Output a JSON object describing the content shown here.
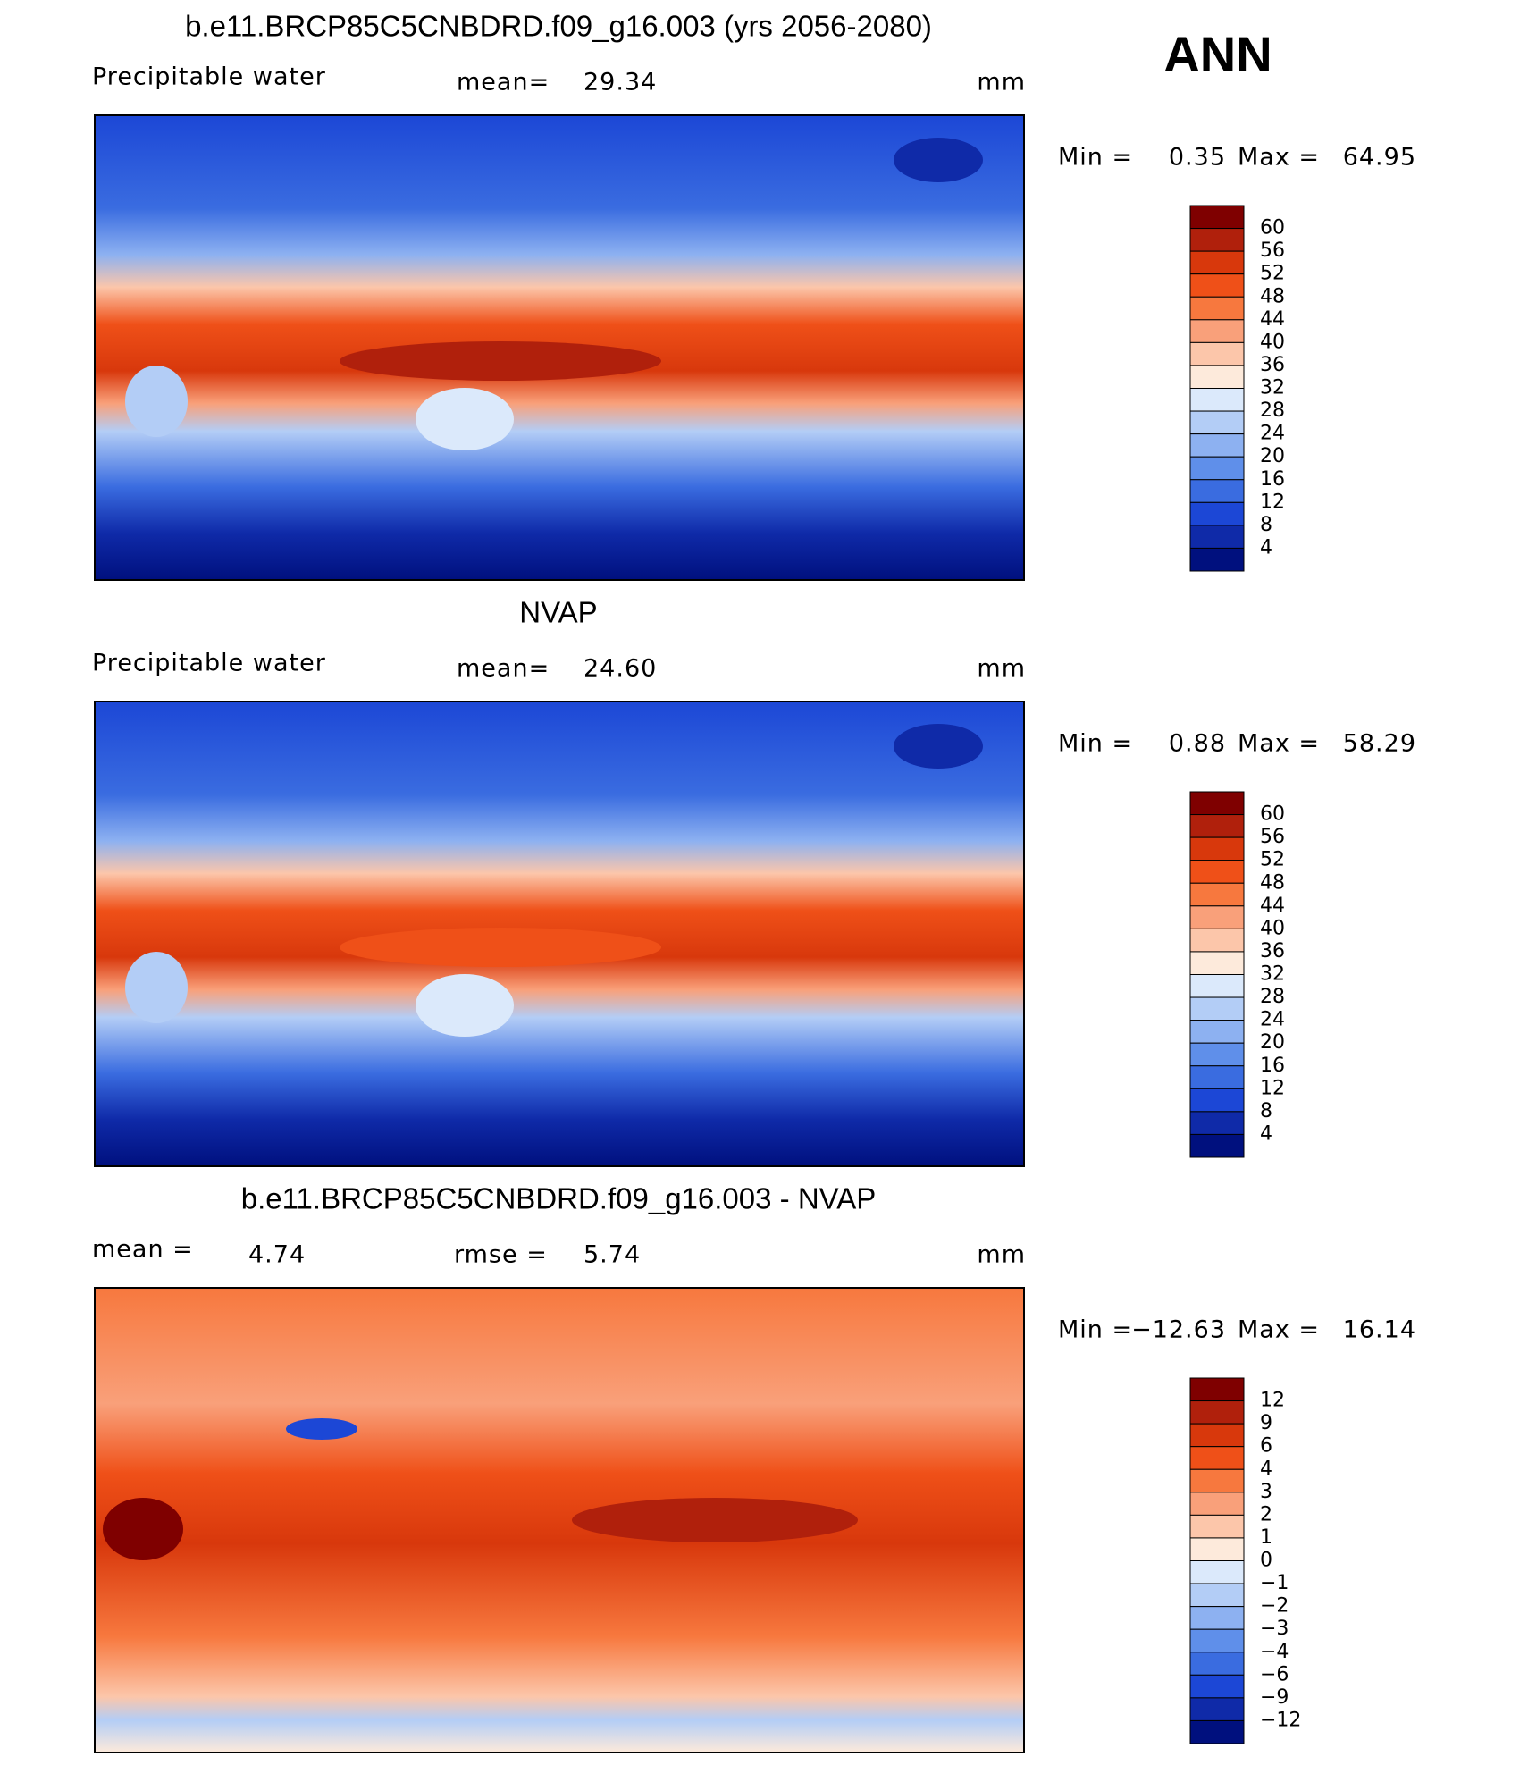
{
  "season": "ANN",
  "panels": [
    {
      "title": "b.e11.BRCP85C5CNBDRD.f09_g16.003 (yrs 2056-2080)",
      "label": "Precipitable water",
      "stat1_label": "mean=",
      "stat1": "29.34",
      "units": "mm",
      "min_label": "Min =",
      "min": "0.35",
      "max_label": "Max =",
      "max": "64.95",
      "style": "field",
      "colorbar": {
        "labels": [
          "60",
          "56",
          "52",
          "48",
          "44",
          "40",
          "36",
          "32",
          "28",
          "24",
          "20",
          "16",
          "12",
          "8",
          "4"
        ],
        "colors": [
          "#7f0000",
          "#b0200c",
          "#d8380c",
          "#ef5018",
          "#f7783e",
          "#f9a07a",
          "#fcc6aa",
          "#fdeadb",
          "#dbe9fb",
          "#b3cdf6",
          "#8db1f1",
          "#5f8fea",
          "#3a6ce0",
          "#1c47d6",
          "#0f2aa8",
          "#00107e"
        ]
      }
    },
    {
      "title": "NVAP",
      "label": "Precipitable water",
      "stat1_label": "mean=",
      "stat1": "24.60",
      "units": "mm",
      "min_label": "Min =",
      "min": "0.88",
      "max_label": "Max =",
      "max": "58.29",
      "style": "field",
      "colorbar": {
        "labels": [
          "60",
          "56",
          "52",
          "48",
          "44",
          "40",
          "36",
          "32",
          "28",
          "24",
          "20",
          "16",
          "12",
          "8",
          "4"
        ],
        "colors": [
          "#7f0000",
          "#b0200c",
          "#d8380c",
          "#ef5018",
          "#f7783e",
          "#f9a07a",
          "#fcc6aa",
          "#fdeadb",
          "#dbe9fb",
          "#b3cdf6",
          "#8db1f1",
          "#5f8fea",
          "#3a6ce0",
          "#1c47d6",
          "#0f2aa8",
          "#00107e"
        ]
      }
    },
    {
      "title": "b.e11.BRCP85C5CNBDRD.f09_g16.003 - NVAP",
      "label": "mean =",
      "stat0": "4.74",
      "stat1_label": "rmse =",
      "stat1": "5.74",
      "units": "mm",
      "min_label": "Min =",
      "min": "−12.63",
      "max_label": "Max =",
      "max": "16.14",
      "style": "diff",
      "colorbar": {
        "labels": [
          "12",
          "9",
          "6",
          "4",
          "3",
          "2",
          "1",
          "0",
          "−1",
          "−2",
          "−3",
          "−4",
          "−6",
          "−9",
          "−12"
        ],
        "colors": [
          "#7f0000",
          "#b0200c",
          "#d8380c",
          "#ef5018",
          "#f7783e",
          "#f9a07a",
          "#fcc6aa",
          "#fdeadb",
          "#dbe9fb",
          "#b3cdf6",
          "#8db1f1",
          "#5f8fea",
          "#3a6ce0",
          "#1c47d6",
          "#0f2aa8",
          "#00107e"
        ]
      }
    }
  ]
}
